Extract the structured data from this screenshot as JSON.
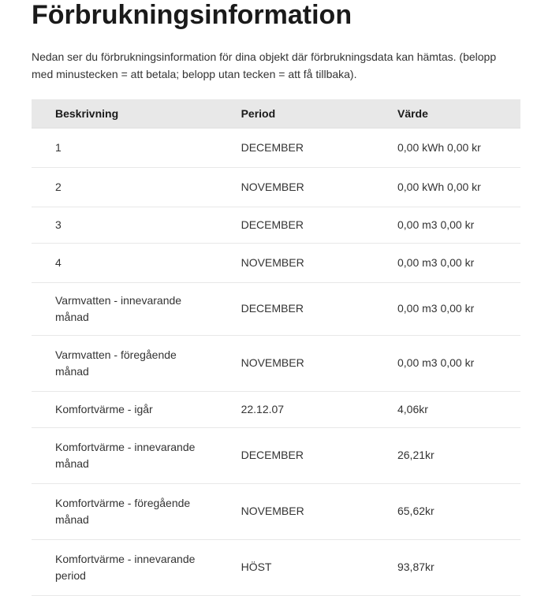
{
  "title": "Förbrukningsinformation",
  "description": "Nedan ser du förbrukningsinformation för dina objekt där förbrukningsdata kan hämtas. (belopp med minustecken = att betala; belopp utan tecken = att få tillbaka).",
  "table": {
    "columns": {
      "desc": "Beskrivning",
      "period": "Period",
      "value": "Värde"
    },
    "rows": [
      {
        "desc": "1",
        "period": "DECEMBER",
        "value": "0,00 kWh 0,00 kr",
        "style": "row-tall"
      },
      {
        "desc": "2",
        "period": "NOVEMBER",
        "value": "0,00 kWh 0,00 kr",
        "style": "row-tall"
      },
      {
        "desc": "3",
        "period": "DECEMBER",
        "value": "0,00 m3 0,00 kr",
        "style": ""
      },
      {
        "desc": "4",
        "period": "NOVEMBER",
        "value": "0,00 m3 0,00 kr",
        "style": "row-tall"
      },
      {
        "desc": "Varmvatten - innevarande månad",
        "period": "DECEMBER",
        "value": "0,00 m3 0,00 kr",
        "style": ""
      },
      {
        "desc": "Varmvatten - föregående månad",
        "period": "NOVEMBER",
        "value": "0,00 m3 0,00 kr",
        "style": "row-tall"
      },
      {
        "desc": "Komfortvärme - igår",
        "period": "22.12.07",
        "value": "4,06kr",
        "style": ""
      },
      {
        "desc": "Komfortvärme - innevarande månad",
        "period": "DECEMBER",
        "value": "26,21kr",
        "style": "row-multiline"
      },
      {
        "desc": "Komfortvärme - föregående månad",
        "period": "NOVEMBER",
        "value": "65,62kr",
        "style": "row-multiline"
      },
      {
        "desc": "Komfortvärme - innevarande period",
        "period": "HÖST",
        "value": "93,87kr",
        "style": "row-multiline"
      }
    ]
  }
}
